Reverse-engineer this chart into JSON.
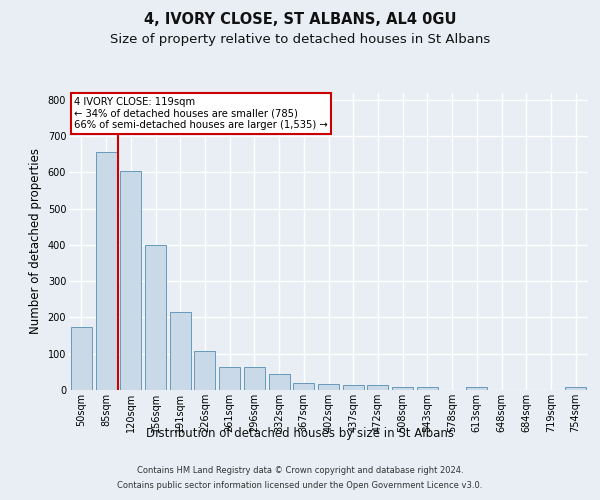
{
  "title": "4, IVORY CLOSE, ST ALBANS, AL4 0GU",
  "subtitle": "Size of property relative to detached houses in St Albans",
  "xlabel": "Distribution of detached houses by size in St Albans",
  "ylabel": "Number of detached properties",
  "footer_line1": "Contains HM Land Registry data © Crown copyright and database right 2024.",
  "footer_line2": "Contains public sector information licensed under the Open Government Licence v3.0.",
  "categories": [
    "50sqm",
    "85sqm",
    "120sqm",
    "156sqm",
    "191sqm",
    "226sqm",
    "261sqm",
    "296sqm",
    "332sqm",
    "367sqm",
    "402sqm",
    "437sqm",
    "472sqm",
    "508sqm",
    "543sqm",
    "578sqm",
    "613sqm",
    "648sqm",
    "684sqm",
    "719sqm",
    "754sqm"
  ],
  "values": [
    175,
    655,
    605,
    400,
    215,
    107,
    63,
    63,
    43,
    18,
    17,
    15,
    13,
    8,
    8,
    0,
    8,
    0,
    0,
    0,
    8
  ],
  "bar_color": "#c9d9e8",
  "bar_edge_color": "#6699bb",
  "annotation_title": "4 IVORY CLOSE: 119sqm",
  "annotation_line1": "← 34% of detached houses are smaller (785)",
  "annotation_line2": "66% of semi-detached houses are larger (1,535) →",
  "annotation_box_color": "#ffffff",
  "annotation_box_edge_color": "#cc0000",
  "highlight_line_color": "#cc0000",
  "ylim": [
    0,
    820
  ],
  "yticks": [
    0,
    100,
    200,
    300,
    400,
    500,
    600,
    700,
    800
  ],
  "bg_color": "#e8eef4",
  "axes_bg_color": "#e8eef4",
  "grid_color": "#ffffff",
  "title_fontsize": 10.5,
  "subtitle_fontsize": 9.5,
  "tick_fontsize": 7,
  "ylabel_fontsize": 8.5,
  "xlabel_fontsize": 8.5,
  "footer_fontsize": 6.0
}
